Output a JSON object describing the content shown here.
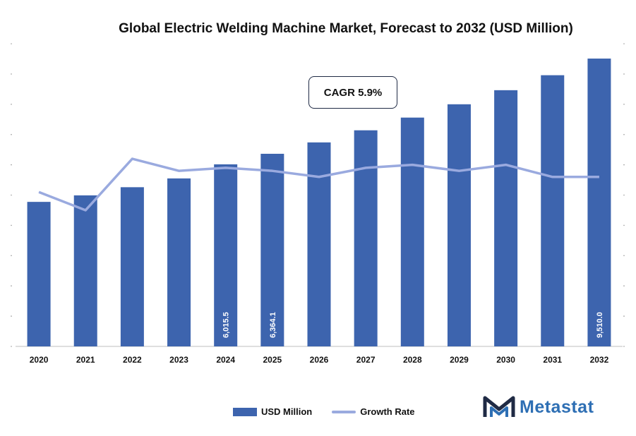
{
  "title": "Global Electric Welding Machine Market, Forecast to 2032 (USD Million)",
  "annotation": {
    "cagr_label": "CAGR 5.9%"
  },
  "legend": {
    "bar_label": "USD Million",
    "line_label": "Growth Rate"
  },
  "logo": {
    "text": "Metastat"
  },
  "colors": {
    "bar": "#3d64ae",
    "line": "#9aaadf",
    "logo_text": "#2e6fb4",
    "logo_mark": "#1f2a44"
  },
  "chart_data": {
    "type": "bar",
    "categories": [
      "2020",
      "2021",
      "2022",
      "2023",
      "2024",
      "2025",
      "2026",
      "2027",
      "2028",
      "2029",
      "2030",
      "2031",
      "2032"
    ],
    "series": [
      {
        "name": "USD Million",
        "type": "bar",
        "values": [
          4775,
          4990,
          5260,
          5550,
          6015.5,
          6364.1,
          6740,
          7140,
          7560,
          8000,
          8465,
          8960,
          9510.0
        ]
      },
      {
        "name": "Growth Rate",
        "type": "line",
        "values": [
          5.1,
          4.5,
          6.2,
          5.8,
          5.9,
          5.8,
          5.6,
          5.9,
          6.0,
          5.8,
          6.0,
          5.6,
          5.6
        ]
      }
    ],
    "data_labels": {
      "2024": "6,015.5",
      "2025": "6,364.1",
      "2032": "9,510.0"
    },
    "ylim": [
      0,
      10000
    ],
    "y2lim": [
      0,
      10
    ],
    "grid": false,
    "legend_position": "bottom"
  }
}
